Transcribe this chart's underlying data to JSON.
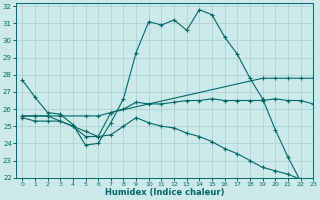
{
  "xlabel": "Humidex (Indice chaleur)",
  "bg_color": "#cceaea",
  "grid_color": "#aacccc",
  "line_color": "#006666",
  "xlim": [
    -0.5,
    23
  ],
  "ylim": [
    22,
    32.2
  ],
  "yticks": [
    22,
    23,
    24,
    25,
    26,
    27,
    28,
    29,
    30,
    31,
    32
  ],
  "xticks": [
    0,
    1,
    2,
    3,
    4,
    5,
    6,
    7,
    8,
    9,
    10,
    11,
    12,
    13,
    14,
    15,
    16,
    17,
    18,
    19,
    20,
    21,
    22,
    23
  ],
  "line1_x": [
    0,
    1,
    2,
    3,
    4,
    5,
    6,
    7,
    8,
    9,
    10,
    11,
    12,
    13,
    14,
    15,
    16,
    17,
    18,
    19,
    20,
    21,
    22,
    23
  ],
  "line1_y": [
    27.7,
    26.7,
    25.8,
    25.7,
    25.1,
    23.9,
    24.0,
    25.2,
    26.6,
    29.3,
    31.1,
    30.9,
    31.2,
    30.6,
    31.8,
    31.5,
    30.2,
    29.2,
    27.8,
    26.6,
    24.8,
    23.2,
    21.8,
    21.8
  ],
  "line2_x": [
    0,
    1,
    2,
    3,
    5,
    6,
    7,
    19,
    20,
    21,
    22,
    23
  ],
  "line2_y": [
    25.6,
    25.6,
    25.6,
    25.6,
    25.6,
    25.6,
    25.8,
    27.8,
    27.8,
    27.8,
    27.8,
    27.8
  ],
  "line3_x": [
    0,
    1,
    2,
    3,
    4,
    5,
    6,
    7,
    8,
    9,
    10,
    11,
    12,
    13,
    14,
    15,
    16,
    17,
    18,
    19,
    20,
    21,
    22,
    23
  ],
  "line3_y": [
    25.6,
    25.6,
    25.6,
    25.3,
    25.0,
    24.7,
    24.4,
    25.8,
    26.0,
    26.4,
    26.3,
    26.3,
    26.4,
    26.5,
    26.5,
    26.6,
    26.5,
    26.5,
    26.5,
    26.5,
    26.6,
    26.5,
    26.5,
    26.3
  ],
  "line4_x": [
    0,
    1,
    2,
    3,
    4,
    5,
    6,
    7,
    8,
    9,
    10,
    11,
    12,
    13,
    14,
    15,
    16,
    17,
    18,
    19,
    20,
    21,
    22,
    23
  ],
  "line4_y": [
    25.5,
    25.3,
    25.3,
    25.3,
    25.0,
    24.4,
    24.4,
    24.5,
    25.0,
    25.5,
    25.2,
    25.0,
    24.9,
    24.6,
    24.4,
    24.1,
    23.7,
    23.4,
    23.0,
    22.6,
    22.4,
    22.2,
    21.9,
    21.8
  ]
}
